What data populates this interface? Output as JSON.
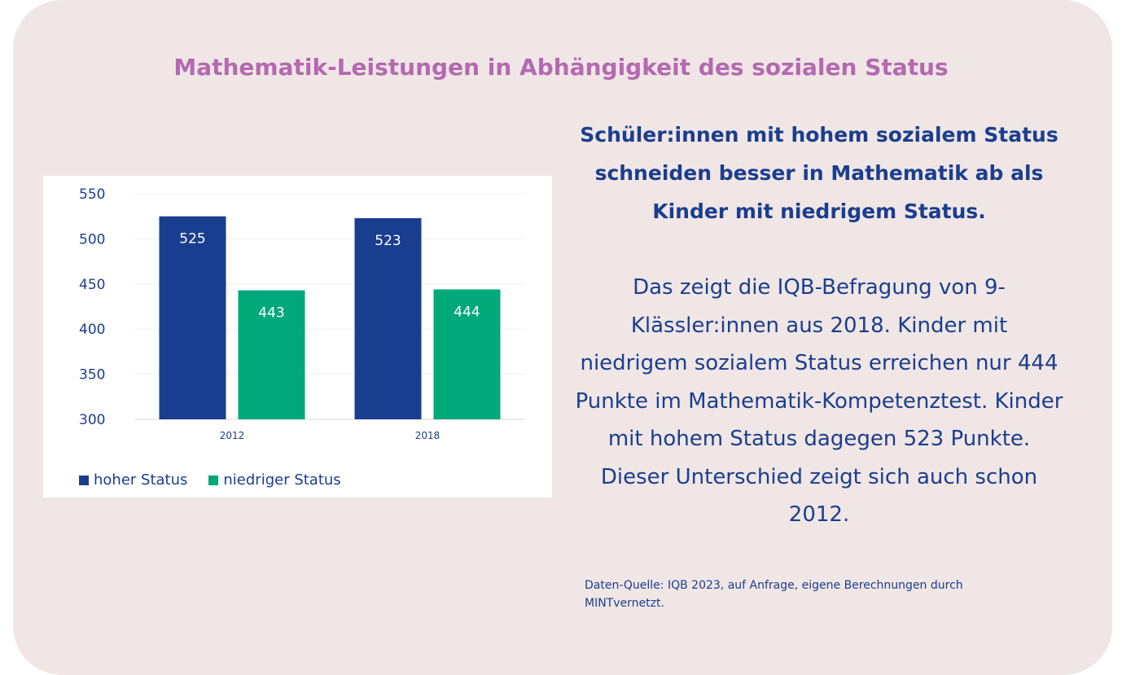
{
  "title": "Mathematik-Leistungen in Abhängigkeit des sozialen Status",
  "headline": "Schüler:innen mit hohem sozialem Status schneiden besser in Mathematik ab als Kinder mit niedrigem Status.",
  "body": "Das zeigt die IQB-Befragung von 9-Klässler:innen aus 2018. Kinder mit niedrigem sozialem Status erreichen nur 444 Punkte im Mathematik-Kompetenztest. Kinder mit hohem Status dagegen 523 Punkte. Dieser Unterschied zeigt sich auch schon 2012.",
  "source": "Daten-Quelle: IQB 2023, auf Anfrage, eigene Berechnungen durch MINTvernetzt.",
  "colors": {
    "background": "#f0e6e5",
    "title": "#b469b1",
    "text": "#1a3e8f",
    "hoher_status": "#1a3e8f",
    "niedriger_status": "#00a87a"
  },
  "chart_data": {
    "type": "bar",
    "categories": [
      "2012",
      "2018"
    ],
    "series": [
      {
        "name": "hoher Status",
        "values": [
          525,
          523
        ],
        "labels": [
          "525",
          "523"
        ],
        "color": "#1a3e8f"
      },
      {
        "name": "niedriger Status",
        "values": [
          443,
          444
        ],
        "labels": [
          "443",
          "444"
        ],
        "color": "#00a87a"
      }
    ],
    "ylim": [
      300,
      550
    ],
    "yticks": [
      300,
      350,
      400,
      450,
      500,
      550
    ],
    "grid": true,
    "legend": "bottom-left"
  }
}
